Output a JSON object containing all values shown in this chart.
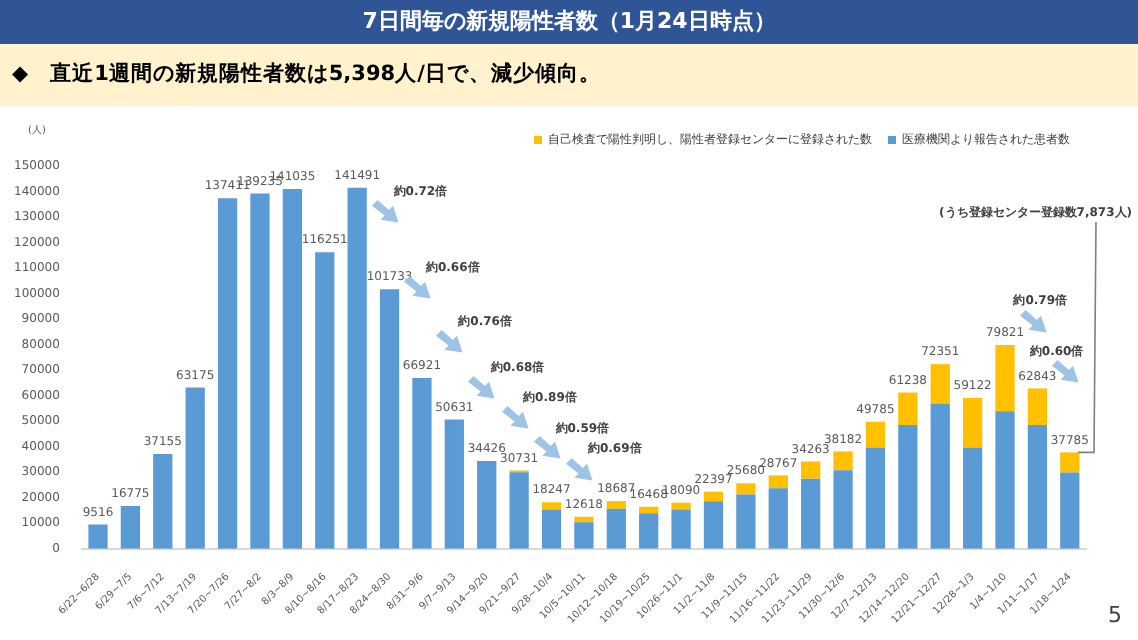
{
  "chart_data": {
    "type": "bar",
    "title": "7日間毎の新規陽性者数（1月24日時点）",
    "subtitle": "◆　直近1週間の新規陽性者数は5,398人/日で、減少傾向。",
    "ylabel": "(人)",
    "categories": [
      "6/22~6/28",
      "6/29~7/5",
      "7/6~7/12",
      "7/13~7/19",
      "7/20~7/26",
      "7/27~8/2",
      "8/3~8/9",
      "8/10~8/16",
      "8/17~8/23",
      "8/24~8/30",
      "8/31~9/6",
      "9/7~9/13",
      "9/14~9/20",
      "9/21~9/27",
      "9/28~10/4",
      "10/5~10/11",
      "10/12~10/18",
      "10/19~10/25",
      "10/26~11/1",
      "11/2~11/8",
      "11/9~11/15",
      "11/16~11/22",
      "11/23~11/29",
      "11/30~12/6",
      "12/7~12/13",
      "12/14~12/20",
      "12/21~12/27",
      "12/28~1/3",
      "1/4~1/10",
      "1/11~1/17",
      "1/18~1/24"
    ],
    "stacked": true,
    "series": [
      {
        "name": "医療機関より報告された患者数",
        "color": "#5b9bd5",
        "values": [
          9516,
          16775,
          37155,
          63175,
          137411,
          139235,
          141035,
          116251,
          141491,
          101733,
          66921,
          50631,
          34426,
          30000,
          15400,
          10400,
          15700,
          13900,
          15400,
          18600,
          21300,
          23700,
          27500,
          30800,
          39700,
          48500,
          56800,
          39700,
          53900,
          48500,
          29912
        ]
      },
      {
        "name": "自己検査で陽性判明し、陽性者登録センターに登録された数",
        "color": "#ffc000",
        "values": [
          0,
          0,
          0,
          0,
          0,
          0,
          0,
          0,
          0,
          0,
          0,
          0,
          0,
          731,
          2847,
          2218,
          2987,
          2568,
          2690,
          3797,
          4380,
          5067,
          6763,
          7382,
          10085,
          12738,
          15551,
          19422,
          25921,
          14343,
          7873
        ]
      }
    ],
    "totals": [
      "9516",
      "16775",
      "37155",
      "63175",
      "137411",
      "139235",
      "141035",
      "116251",
      "141491",
      "101733",
      "66921",
      "50631",
      "34426",
      "30731",
      "18247",
      "12618",
      "18687",
      "16468",
      "18090",
      "22397",
      "25680",
      "28767",
      "34263",
      "38182",
      "49785",
      "61238",
      "72351",
      "59122",
      "79821",
      "62843",
      "37785"
    ],
    "ylim": [
      0,
      150000
    ],
    "yticks": [
      0,
      10000,
      20000,
      30000,
      40000,
      50000,
      60000,
      70000,
      80000,
      90000,
      100000,
      110000,
      120000,
      130000,
      140000,
      150000
    ],
    "legend": "top right",
    "annotations": [
      {
        "text": "(うち登録センター登録数7,873人)",
        "x": "1/18~1/24",
        "y": 37785
      },
      "約0.72倍",
      "約0.66倍",
      "約0.76倍",
      "約0.68倍",
      "約0.89倍",
      "約0.59倍",
      "約0.69倍",
      "約0.79倍",
      "約0.60倍",
      "5"
    ]
  }
}
